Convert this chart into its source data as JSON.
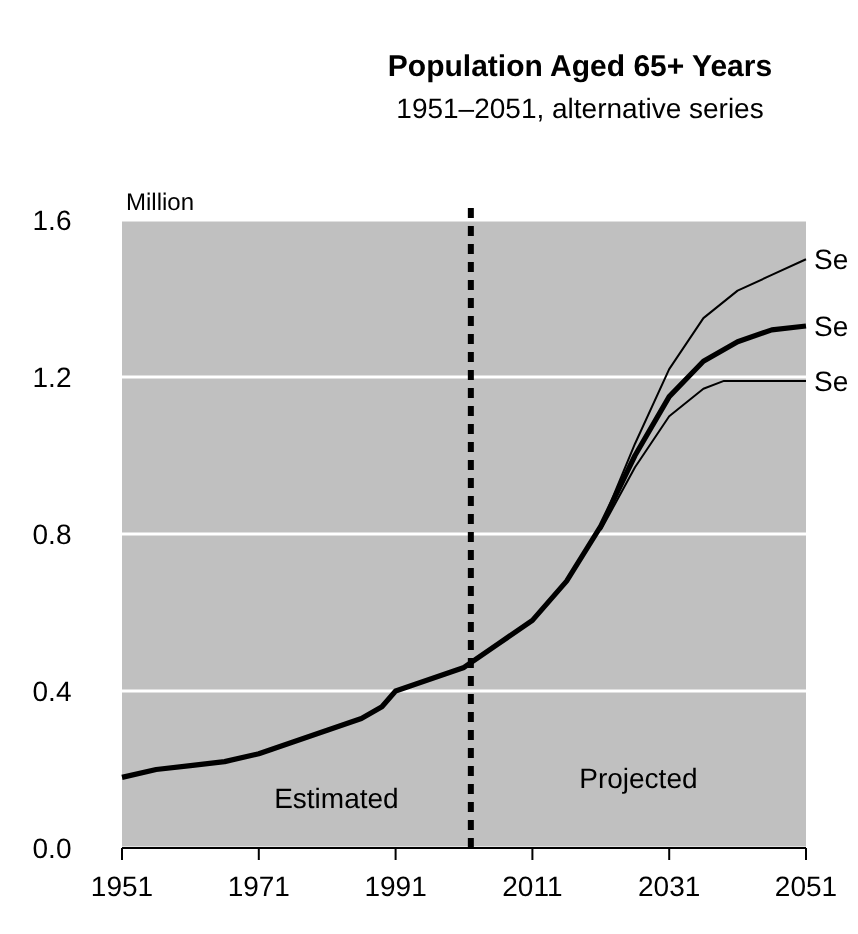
{
  "chart_data": {
    "type": "line",
    "title": "Population Aged 65+ Years",
    "subtitle": "1951–2051, alternative series",
    "ylabel": "Million",
    "xlim": [
      1951,
      2051
    ],
    "xticks": [
      1951,
      1971,
      1991,
      2011,
      2031,
      2051
    ],
    "ylim": [
      0,
      1.6
    ],
    "yticks": [
      {
        "value": 0,
        "label": "0.0"
      },
      0.4,
      0.8,
      1.2,
      1.6
    ],
    "grid": "y",
    "legend": false,
    "marker": "none",
    "line_style": "solid",
    "series": [
      {
        "name": "Se",
        "color": "#000000",
        "x": [
          2021,
          2026,
          2031,
          2036,
          2041,
          2046,
          2051
        ],
        "values": [
          0.82,
          1.03,
          1.22,
          1.35,
          1.42,
          1.46,
          1.5
        ]
      },
      {
        "name": "Se",
        "color": "#000000",
        "x": [
          1951,
          1956,
          1961,
          1966,
          1971,
          1976,
          1981,
          1986,
          1989,
          1991,
          1996,
          2001,
          2006,
          2011,
          2016,
          2021,
          2026,
          2031,
          2036,
          2041,
          2046,
          2051
        ],
        "values": [
          0.18,
          0.2,
          0.21,
          0.22,
          0.24,
          0.27,
          0.3,
          0.33,
          0.36,
          0.4,
          0.43,
          0.46,
          0.52,
          0.58,
          0.68,
          0.82,
          1.0,
          1.15,
          1.24,
          1.29,
          1.32,
          1.33
        ]
      },
      {
        "name": "Se",
        "color": "#000000",
        "x": [
          2021,
          2026,
          2031,
          2036,
          2039,
          2051
        ],
        "values": [
          0.81,
          0.97,
          1.1,
          1.17,
          1.19,
          1.19
        ]
      }
    ],
    "ref_lines": [
      {
        "axis": "x",
        "value": 2002,
        "line_style": "dashed",
        "color": "#000000"
      }
    ],
    "annotations": [
      "Estimated",
      "Projected"
    ]
  }
}
